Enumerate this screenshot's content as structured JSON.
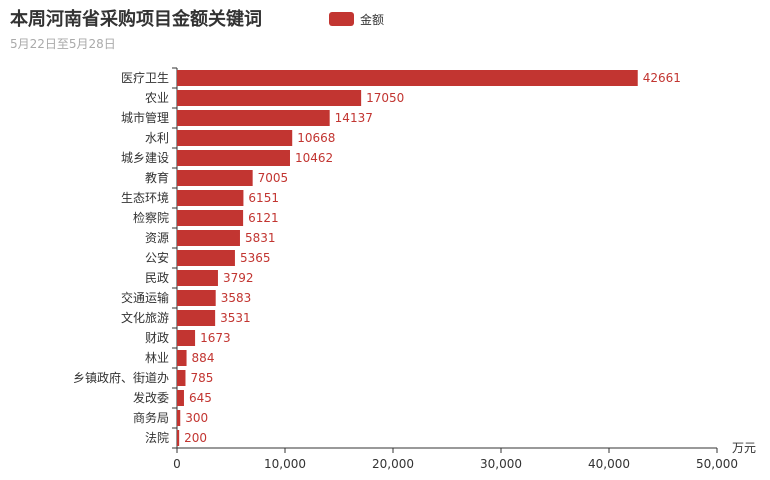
{
  "chart_data": {
    "type": "bar",
    "orientation": "horizontal",
    "title": "本周河南省采购项目金额关键词",
    "subtitle": "5月22日至5月28日",
    "legend": [
      "金额"
    ],
    "legend_position": "top-center",
    "xlabel": "万元",
    "xlim": [
      0,
      50000
    ],
    "xticks": [
      "0",
      "10,000",
      "20,000",
      "30,000",
      "40,000",
      "50,000"
    ],
    "categories": [
      "医疗卫生",
      "农业",
      "城市管理",
      "水利",
      "城乡建设",
      "教育",
      "生态环境",
      "检察院",
      "资源",
      "公安",
      "民政",
      "交通运输",
      "文化旅游",
      "财政",
      "林业",
      "乡镇政府、街道办",
      "发改委",
      "商务局",
      "法院"
    ],
    "values": [
      42661,
      17050,
      14137,
      10668,
      10462,
      7005,
      6151,
      6121,
      5831,
      5365,
      3792,
      3583,
      3531,
      1673,
      884,
      785,
      645,
      300,
      200
    ],
    "color": "#c23531"
  }
}
